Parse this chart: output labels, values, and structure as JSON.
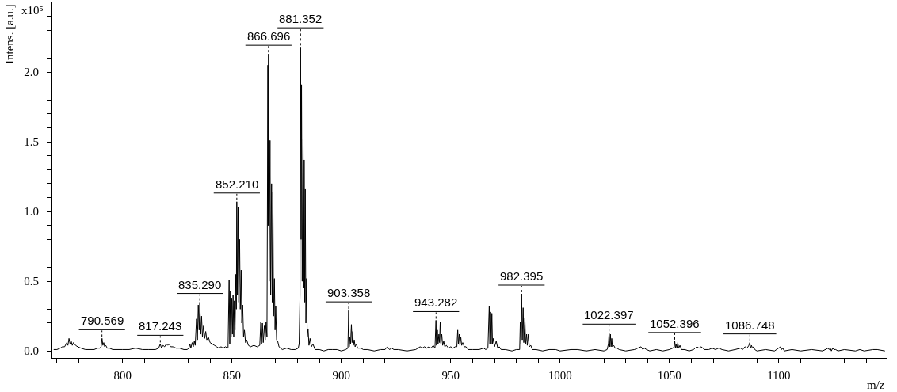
{
  "chart_data": {
    "type": "line",
    "xlabel": "m/z",
    "ylabel": "Intens. [a.u.]",
    "color": "#000000",
    "xlim": [
      767.5,
      1149.3
    ],
    "ylim": [
      -0.05,
      2.5
    ],
    "xticks": [
      {
        "value": 770,
        "label": null
      },
      {
        "value": 780,
        "label": null
      },
      {
        "value": 790,
        "label": null
      },
      800,
      {
        "value": 810,
        "label": null
      },
      {
        "value": 820,
        "label": null
      },
      {
        "value": 830,
        "label": null
      },
      {
        "value": 840,
        "label": null
      },
      850,
      {
        "value": 860,
        "label": null
      },
      {
        "value": 870,
        "label": null
      },
      {
        "value": 880,
        "label": null
      },
      {
        "value": 890,
        "label": null
      },
      900,
      {
        "value": 910,
        "label": null
      },
      {
        "value": 920,
        "label": null
      },
      {
        "value": 930,
        "label": null
      },
      {
        "value": 940,
        "label": null
      },
      950,
      {
        "value": 960,
        "label": null
      },
      {
        "value": 970,
        "label": null
      },
      {
        "value": 980,
        "label": null
      },
      {
        "value": 990,
        "label": null
      },
      1000,
      {
        "value": 1010,
        "label": null
      },
      {
        "value": 1020,
        "label": null
      },
      {
        "value": 1030,
        "label": null
      },
      {
        "value": 1040,
        "label": null
      },
      1050,
      {
        "value": 1060,
        "label": null
      },
      {
        "value": 1070,
        "label": null
      },
      {
        "value": 1080,
        "label": null
      },
      {
        "value": 1090,
        "label": null
      },
      1100,
      {
        "value": 1110,
        "label": null
      },
      {
        "value": 1120,
        "label": null
      },
      {
        "value": 1130,
        "label": null
      },
      {
        "value": 1140,
        "label": null
      }
    ],
    "yticks": [
      {
        "value": 0,
        "label": "0.0"
      },
      {
        "value": 0.1,
        "label": null
      },
      {
        "value": 0.2,
        "label": null
      },
      {
        "value": 0.3,
        "label": null
      },
      {
        "value": 0.4,
        "label": null
      },
      0.5,
      {
        "value": 0.6,
        "label": null
      },
      {
        "value": 0.7,
        "label": null
      },
      {
        "value": 0.8,
        "label": null
      },
      {
        "value": 0.9,
        "label": null
      },
      {
        "value": 1,
        "label": "1.0"
      },
      {
        "value": 1.1,
        "label": null
      },
      {
        "value": 1.2,
        "label": null
      },
      {
        "value": 1.3,
        "label": null
      },
      {
        "value": 1.4,
        "label": null
      },
      1.5,
      {
        "value": 1.6,
        "label": null
      },
      {
        "value": 1.7,
        "label": null
      },
      {
        "value": 1.8,
        "label": null
      },
      {
        "value": 1.9,
        "label": null
      },
      {
        "value": 2,
        "label": "2.0"
      },
      {
        "value": 2.1,
        "label": null
      },
      {
        "value": 2.2,
        "label": null
      },
      {
        "value": 2.3,
        "label": null
      },
      {
        "value": 2.4,
        "label": null
      }
    ],
    "annotations": [
      "x10⁵",
      {
        "text": "790.569",
        "x": 790.569,
        "y": 0.09
      },
      {
        "text": "817.243",
        "x": 817.243,
        "y": 0.05
      },
      {
        "text": "835.290",
        "x": 835.29,
        "y": 0.35
      },
      {
        "text": "852.210",
        "x": 852.21,
        "y": 1.07
      },
      {
        "text": "866.696",
        "x": 866.696,
        "y": 2.13
      },
      {
        "text": "881.352",
        "x": 881.352,
        "y": 2.18
      },
      {
        "text": "903.358",
        "x": 903.358,
        "y": 0.29
      },
      {
        "text": "943.282",
        "x": 943.282,
        "y": 0.22
      },
      {
        "text": "982.395",
        "x": 982.395,
        "y": 0.41
      },
      {
        "text": "1022.397",
        "x": 1022.397,
        "y": 0.13
      },
      {
        "text": "1052.396",
        "x": 1052.396,
        "y": 0.07
      },
      {
        "text": "1086.748",
        "x": 1086.748,
        "y": 0.06
      }
    ],
    "x": [
      768.5,
      770,
      771.5,
      772.5,
      773.5,
      774.5,
      775,
      775.5,
      776,
      776.5,
      777,
      777.5,
      778.5,
      779.5,
      781,
      783,
      785,
      787,
      788.5,
      789.5,
      790.2,
      790.6,
      791,
      791.4,
      791.8,
      792.3,
      793,
      794,
      795.5,
      797,
      800,
      803,
      806,
      809,
      812,
      815,
      816.5,
      817.2,
      817.8,
      818.5,
      819.2,
      820,
      820.6,
      821.2,
      822,
      823,
      824.5,
      826,
      828,
      829.5,
      830.3,
      830.8,
      831.2,
      831.8,
      832.3,
      832.8,
      833.2,
      833.8,
      834.2,
      834.6,
      835,
      835.3,
      835.7,
      836.1,
      836.5,
      837,
      837.5,
      838,
      838.5,
      839.2,
      840,
      841,
      842,
      843,
      844,
      845,
      846,
      847,
      848.2,
      848.7,
      849,
      849.3,
      849.6,
      849.9,
      850.2,
      850.5,
      850.8,
      851.1,
      851.4,
      851.8,
      852,
      852.2,
      852.5,
      852.8,
      853.1,
      853.5,
      853.8,
      854.2,
      854.5,
      854.9,
      855.3,
      855.7,
      856.2,
      856.7,
      857.5,
      858.5,
      860,
      861.5,
      862.7,
      863.2,
      863.5,
      863.9,
      864.3,
      864.8,
      865.2,
      865.6,
      866,
      866.4,
      866.55,
      866.7,
      867,
      867.4,
      867.7,
      868.1,
      868.4,
      868.7,
      869,
      869.4,
      869.7,
      870,
      870.4,
      870.9,
      871.5,
      872.2,
      873,
      875,
      877,
      879,
      880.3,
      880.7,
      881.1,
      881.35,
      881.6,
      881.8,
      882.1,
      882.5,
      882.8,
      883,
      883.3,
      883.5,
      883.8,
      884.1,
      884.4,
      884.8,
      885.2,
      885.7,
      886.3,
      887,
      888,
      890,
      892,
      894,
      896,
      898,
      900,
      902,
      903,
      903.35,
      903.6,
      903.9,
      904.2,
      904.6,
      904.9,
      905.2,
      905.5,
      905.9,
      906.3,
      906.8,
      907.5,
      909,
      910,
      912,
      915,
      918,
      920,
      921,
      922,
      923,
      924,
      926,
      930,
      934,
      935,
      936,
      937,
      938,
      939,
      940,
      941,
      942,
      942.8,
      943.25,
      943.5,
      943.9,
      944.2,
      944.6,
      944.9,
      945.2,
      945.5,
      945.9,
      946.3,
      946.8,
      947.3,
      948,
      949,
      950,
      951,
      952,
      952.8,
      953.2,
      953.5,
      953.9,
      954.2,
      954.6,
      955,
      955.5,
      956.2,
      957,
      958,
      960,
      963,
      965,
      966,
      967,
      967.6,
      967.9,
      968.2,
      968.5,
      968.8,
      969.1,
      969.5,
      970,
      970.8,
      971.5,
      972.2,
      973,
      975,
      978,
      980,
      981.5,
      981.8,
      982.1,
      982.4,
      982.7,
      983.1,
      983.4,
      983.9,
      984.2,
      984.7,
      985,
      985.5,
      985.9,
      986.6,
      987.3,
      989,
      992,
      995,
      998,
      1000,
      1005,
      1008,
      1012,
      1016,
      1020,
      1021.5,
      1022.1,
      1022.4,
      1022.7,
      1023,
      1023.3,
      1023.6,
      1023.9,
      1024.5,
      1025.2,
      1026,
      1027,
      1030,
      1034,
      1037,
      1037.8,
      1038.5,
      1039.5,
      1041,
      1044,
      1047,
      1050,
      1051.5,
      1052.1,
      1052.4,
      1052.7,
      1053,
      1053.4,
      1053.8,
      1054.2,
      1054.8,
      1055.5,
      1057,
      1059,
      1061,
      1062.5,
      1063.5,
      1064.5,
      1066,
      1068,
      1069.5,
      1071,
      1072.5,
      1074,
      1077,
      1080,
      1082.5,
      1083.5,
      1084.5,
      1085.5,
      1086.3,
      1086.7,
      1087.1,
      1087.5,
      1087.9,
      1088.4,
      1089,
      1090,
      1094,
      1098,
      1100.8,
      1101.3,
      1101.8,
      1102.5,
      1106,
      1110,
      1115,
      1120,
      1122.5,
      1123,
      1123.5,
      1124,
      1124.6,
      1125.2,
      1126,
      1127,
      1130,
      1135,
      1137,
      1139,
      1143,
      1145,
      1148.5
    ],
    "values": [
      0.01,
      0.01,
      0.02,
      0.03,
      0.03,
      0.06,
      0.04,
      0.09,
      0.05,
      0.07,
      0.04,
      0.06,
      0.04,
      0.03,
      0.02,
      0.01,
      0.01,
      0.01,
      0.02,
      0.02,
      0.03,
      0.09,
      0.04,
      0.06,
      0.03,
      0.04,
      0.02,
      0.02,
      0.01,
      0.01,
      0.01,
      0.01,
      0.02,
      0.01,
      0.01,
      0.01,
      0.02,
      0.05,
      0.02,
      0.04,
      0.03,
      0.05,
      0.04,
      0.05,
      0.03,
      0.03,
      0.02,
      0.02,
      0.01,
      0.01,
      0.02,
      0.05,
      0.02,
      0.06,
      0.03,
      0.07,
      0.04,
      0.23,
      0.08,
      0.33,
      0.15,
      0.35,
      0.12,
      0.25,
      0.1,
      0.18,
      0.09,
      0.14,
      0.08,
      0.1,
      0.06,
      0.05,
      0.04,
      0.03,
      0.02,
      0.03,
      0.02,
      0.03,
      0.02,
      0.51,
      0.05,
      0.43,
      0.1,
      0.38,
      0.12,
      0.4,
      0.1,
      0.36,
      0.15,
      0.55,
      0.3,
      1.07,
      0.4,
      1.03,
      0.35,
      0.8,
      0.3,
      0.58,
      0.2,
      0.33,
      0.1,
      0.15,
      0.06,
      0.08,
      0.04,
      0.03,
      0.04,
      0.03,
      0.04,
      0.21,
      0.05,
      0.2,
      0.06,
      0.18,
      0.08,
      0.21,
      0.1,
      2.05,
      0.9,
      2.13,
      0.5,
      1.51,
      0.4,
      1.2,
      0.35,
      1.14,
      0.25,
      0.52,
      0.15,
      0.32,
      0.08,
      0.07,
      0.03,
      0.02,
      0.01,
      0.02,
      0.01,
      0.01,
      0.02,
      0.05,
      0.4,
      2.18,
      0.8,
      1.91,
      0.5,
      1.52,
      0.45,
      1.37,
      0.35,
      1.16,
      0.2,
      0.52,
      0.1,
      0.16,
      0.04,
      0.09,
      0.03,
      0.05,
      0.01,
      0.01,
      0,
      0.01,
      0.01,
      0.01,
      0,
      0.01,
      0.02,
      0.29,
      0.03,
      0.1,
      0.05,
      0.19,
      0.06,
      0.14,
      0.04,
      0.08,
      0.03,
      0.05,
      0.02,
      0.02,
      0.01,
      0.01,
      0,
      0.01,
      0.01,
      0.03,
      0.01,
      0.02,
      0.01,
      0.01,
      0,
      0.01,
      0.02,
      0.03,
      0.02,
      0.03,
      0.02,
      0.03,
      0.02,
      0.04,
      0.02,
      0.22,
      0.04,
      0.15,
      0.05,
      0.12,
      0.06,
      0.21,
      0.05,
      0.12,
      0.04,
      0.07,
      0.03,
      0.04,
      0.02,
      0.03,
      0.02,
      0.03,
      0.03,
      0.15,
      0.05,
      0.12,
      0.04,
      0.1,
      0.04,
      0.06,
      0.03,
      0.03,
      0.01,
      0.01,
      0.01,
      0.02,
      0.01,
      0.02,
      0.32,
      0.05,
      0.28,
      0.05,
      0.27,
      0.05,
      0.09,
      0.03,
      0.07,
      0.02,
      0.03,
      0.01,
      0.01,
      0,
      0.01,
      0.01,
      0.21,
      0.05,
      0.41,
      0.08,
      0.31,
      0.06,
      0.24,
      0.05,
      0.12,
      0.04,
      0.12,
      0.03,
      0.04,
      0.01,
      0.01,
      0,
      0.01,
      0.01,
      0,
      0.01,
      0.01,
      0,
      0.01,
      0,
      0.01,
      0.05,
      0.13,
      0.03,
      0.12,
      0.03,
      0.09,
      0.03,
      0.04,
      0.02,
      0.02,
      0.01,
      0,
      0.01,
      0.03,
      0.01,
      0.02,
      0.01,
      0,
      0.01,
      0,
      0.01,
      0.02,
      0.03,
      0.07,
      0.02,
      0.05,
      0.02,
      0.06,
      0.02,
      0.04,
      0.01,
      0.01,
      0,
      0.01,
      0.03,
      0.02,
      0.03,
      0.01,
      0.01,
      0.02,
      0.01,
      0.02,
      0.01,
      0,
      0.01,
      0.02,
      0.01,
      0.03,
      0.02,
      0.04,
      0.06,
      0.02,
      0.04,
      0.02,
      0.03,
      0.01,
      0,
      0.01,
      0,
      0.03,
      0.01,
      0.02,
      0,
      0.01,
      0,
      0.01,
      0,
      0.02,
      0.01,
      0.02,
      0,
      0.02,
      0.01,
      0.01,
      0,
      0.01,
      0,
      0.01,
      0,
      0.01,
      0.01,
      0
    ]
  }
}
